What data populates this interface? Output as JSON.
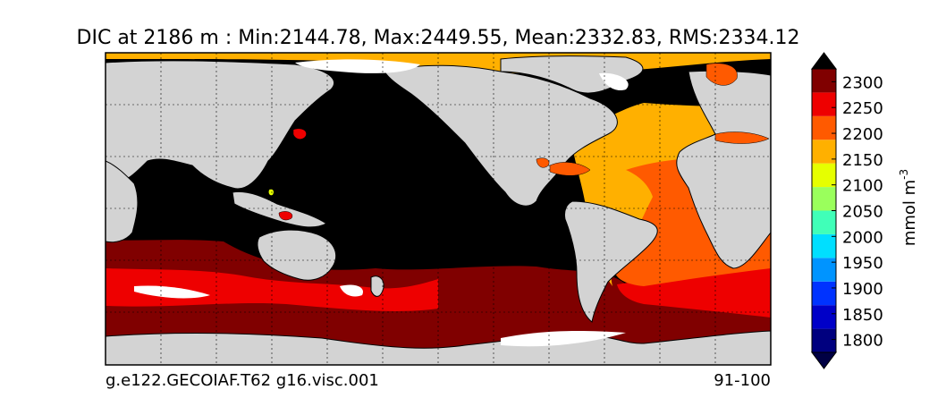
{
  "chart_data": {
    "type": "heatmap",
    "title": "DIC at 2186 m : Min:2144.78, Max:2449.55, Mean:2332.83, RMS:2334.12",
    "subtitle_left": "g.e122.GECOIAF.T62 g16.visc.001",
    "subtitle_right": "91-100",
    "colorbar": {
      "label_main": "mmol m",
      "label_exp": "-3",
      "ticks": [
        "1800",
        "1850",
        "1900",
        "1950",
        "2000",
        "2050",
        "2100",
        "2150",
        "2200",
        "2250",
        "2300"
      ],
      "levels": [
        1775,
        1800,
        1825,
        1850,
        1875,
        1900,
        1925,
        1950,
        1975,
        2000,
        2025,
        2050,
        2075,
        2100,
        2125,
        2150,
        2175,
        2200,
        2225,
        2250,
        2275,
        2300,
        2325
      ],
      "colors": [
        "#00007f",
        "#0000c8",
        "#0033ff",
        "#0094ff",
        "#00dfff",
        "#40ffb8",
        "#9aff5c",
        "#e6ff00",
        "#ffb000",
        "#ff5a00",
        "#ee0000",
        "#800000"
      ],
      "under_color": "#000044",
      "over_color": "#000000"
    },
    "grid": true,
    "land_color": "#d3d3d3"
  }
}
